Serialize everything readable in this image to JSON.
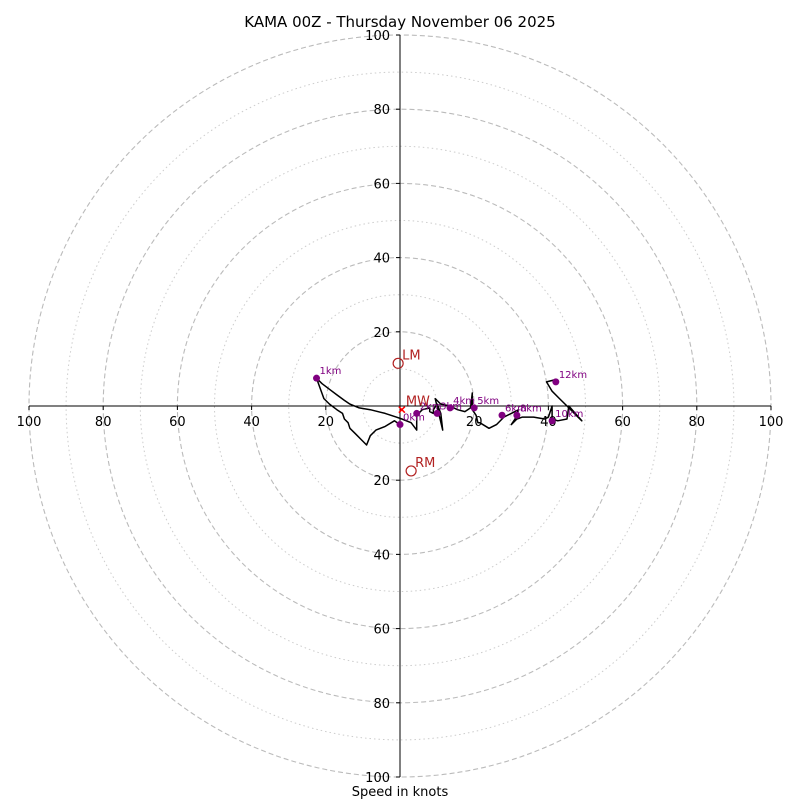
{
  "chart_data": {
    "type": "hodograph",
    "title": "KAMA 00Z - Thursday November 06 2025",
    "xlabel": "Speed in knots",
    "range": [
      -100,
      100
    ],
    "major_rings": [
      20,
      40,
      60,
      80,
      100
    ],
    "minor_rings": [
      10,
      30,
      50,
      70,
      90
    ],
    "ticks": {
      "x_left": [
        "100",
        "80",
        "60",
        "40",
        "20"
      ],
      "x_right": [
        "20",
        "40",
        "60",
        "80",
        "100"
      ],
      "y_up": [
        "20",
        "40",
        "60",
        "80",
        "100"
      ],
      "y_down": [
        "20",
        "40",
        "60",
        "80",
        "100"
      ]
    },
    "colors": {
      "trace": "#000000",
      "height_marker": "#800080",
      "storm_motion": "#b22222",
      "ring_major": "#bbbbbb",
      "ring_minor": "#cccccc"
    },
    "trace": [
      [
        0.0,
        -5.0
      ],
      [
        -1.5,
        -4.0
      ],
      [
        -4.0,
        -5.5
      ],
      [
        -6.5,
        -6.5
      ],
      [
        -8.0,
        -8.0
      ],
      [
        -9.0,
        -10.5
      ],
      [
        -10.5,
        -9.0
      ],
      [
        -12.0,
        -7.5
      ],
      [
        -13.5,
        -6.0
      ],
      [
        -14.0,
        -4.5
      ],
      [
        -15.0,
        -3.5
      ],
      [
        -15.5,
        -2.0
      ],
      [
        -17.0,
        -1.0
      ],
      [
        -19.0,
        0.5
      ],
      [
        -20.5,
        2.0
      ],
      [
        -22.5,
        7.5
      ],
      [
        -21.0,
        6.0
      ],
      [
        -19.0,
        4.5
      ],
      [
        -17.0,
        3.0
      ],
      [
        -15.0,
        1.5
      ],
      [
        -13.5,
        0.5
      ],
      [
        -11.0,
        -0.5
      ],
      [
        -8.0,
        -1.0
      ],
      [
        -4.0,
        -2.0
      ],
      [
        -1.0,
        -3.0
      ],
      [
        0.5,
        -3.5
      ],
      [
        3.0,
        -4.5
      ],
      [
        4.5,
        -6.5
      ],
      [
        4.5,
        -2.5
      ],
      [
        6.0,
        -1.0
      ],
      [
        8.0,
        -0.5
      ],
      [
        8.0,
        -1.5
      ],
      [
        9.0,
        -2.0
      ],
      [
        9.0,
        -1.0
      ],
      [
        10.0,
        0.5
      ],
      [
        11.0,
        -2.0
      ],
      [
        11.5,
        -6.5
      ],
      [
        9.5,
        2.0
      ],
      [
        11.0,
        0.5
      ],
      [
        13.5,
        0.0
      ],
      [
        15.5,
        -1.0
      ],
      [
        17.5,
        -1.5
      ],
      [
        19.0,
        -0.5
      ],
      [
        19.5,
        3.5
      ],
      [
        19.5,
        -1.0
      ],
      [
        20.5,
        -2.5
      ],
      [
        21.0,
        -4.5
      ],
      [
        21.5,
        -4.5
      ],
      [
        24.0,
        -6.0
      ],
      [
        26.0,
        -5.0
      ],
      [
        28.0,
        -3.0
      ],
      [
        30.0,
        -2.0
      ],
      [
        32.0,
        -1.0
      ],
      [
        31.0,
        -3.5
      ],
      [
        30.0,
        -5.0
      ],
      [
        31.5,
        -3.5
      ],
      [
        33.0,
        -3.0
      ],
      [
        36.0,
        -3.0
      ],
      [
        39.0,
        -3.5
      ],
      [
        40.0,
        -3.0
      ],
      [
        41.0,
        0.0
      ],
      [
        41.0,
        -3.5
      ],
      [
        42.5,
        -4.0
      ],
      [
        45.0,
        -3.5
      ],
      [
        45.5,
        0.0
      ],
      [
        49.0,
        -4.0
      ],
      [
        47.5,
        -2.5
      ],
      [
        45.0,
        0.0
      ],
      [
        43.0,
        2.0
      ],
      [
        41.0,
        4.0
      ],
      [
        39.5,
        6.5
      ],
      [
        41.5,
        7.0
      ],
      [
        42.0,
        6.5
      ]
    ],
    "height_markers": [
      {
        "label": "0km",
        "u": 0.0,
        "v": -5.0
      },
      {
        "label": "1km",
        "u": -22.5,
        "v": 7.5
      },
      {
        "label": "2km",
        "u": 4.5,
        "v": -2.0
      },
      {
        "label": "3km",
        "u": 10.0,
        "v": -2.0
      },
      {
        "label": "4km",
        "u": 13.5,
        "v": -0.5
      },
      {
        "label": "5km",
        "u": 20.0,
        "v": -0.5
      },
      {
        "label": "6km",
        "u": 27.5,
        "v": -2.5
      },
      {
        "label": "8km",
        "u": 31.5,
        "v": -2.5
      },
      {
        "label": "10km",
        "u": 41.0,
        "v": -4.0
      },
      {
        "label": "12km",
        "u": 42.0,
        "v": 6.5
      }
    ],
    "storm_motion": [
      {
        "label": "LM",
        "u": -0.5,
        "v": 11.5
      },
      {
        "label": "RM",
        "u": 3.0,
        "v": -17.5
      },
      {
        "label": "MW",
        "u": 0.5,
        "v": -1.0
      }
    ]
  }
}
